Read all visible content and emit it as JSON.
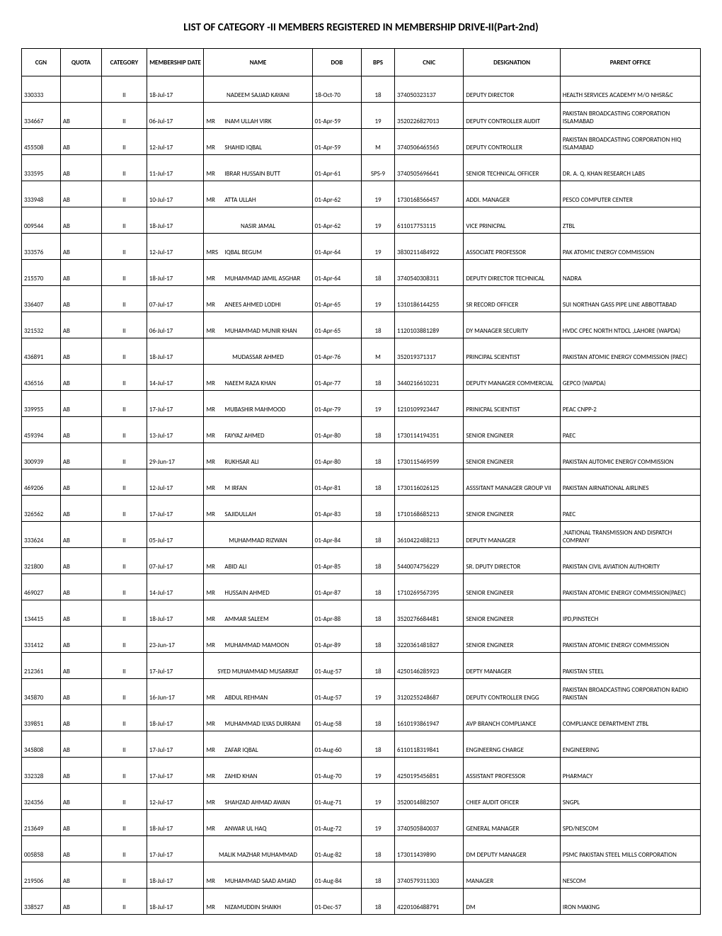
{
  "title": "LIST OF CATEGORY -II MEMBERS REGISTERED IN MEMBERSHIP DRIVE-II(Part-2nd)",
  "headers": {
    "cgn": "CGN",
    "quota": "QUOTA",
    "category": "CATEGORY",
    "date": "MEMBERSHIP DATE",
    "name": "NAME",
    "dob": "DOB",
    "bps": "BPS",
    "cnic": "CNIC",
    "designation": "DESIGNATION",
    "parent": "PARENT OFFICE"
  },
  "rows": [
    {
      "cgn": "330333",
      "quota": "",
      "category": "II",
      "date": "18-Jul-17",
      "honorific": "",
      "name": "NADEEM SAJJAD KAYANI",
      "dob": "18-Oct-70",
      "bps": "18",
      "cnic": "374050323137",
      "designation": "DEPUTY DIRECTOR",
      "parent": "HEALTH SERVICES ACADEMY M/O NHSR&C"
    },
    {
      "cgn": "334667",
      "quota": "AB",
      "category": "II",
      "date": "06-Jul-17",
      "honorific": "MR",
      "name": "INAM ULLAH VIRK",
      "dob": "01-Apr-59",
      "bps": "19",
      "cnic": "3520226827013",
      "designation": "DEPUTY CONTROLLER AUDIT",
      "parent": "PAKISTAN BROADCASTING CORPORATION ISLAMABAD"
    },
    {
      "cgn": "455508",
      "quota": "AB",
      "category": "II",
      "date": "12-Jul-17",
      "honorific": "MR",
      "name": "SHAHID IQBAL",
      "dob": "01-Apr-59",
      "bps": "M",
      "cnic": "3740506465565",
      "designation": "DEPUTY CONTROLLER",
      "parent": "PAKISTAN BROADCASTING CORPORATION HIQ ISLAMABAD"
    },
    {
      "cgn": "333595",
      "quota": "AB",
      "category": "II",
      "date": "11-Jul-17",
      "honorific": "MR",
      "name": "IBRAR HUSSAIN BUTT",
      "dob": "01-Apr-61",
      "bps": "SPS-9",
      "cnic": "3740505696641",
      "designation": "SENIOR TECHNICAL OFFICER",
      "parent": "DR. A. Q. KHAN RESEARCH LABS"
    },
    {
      "cgn": "333948",
      "quota": "AB",
      "category": "II",
      "date": "10-Jul-17",
      "honorific": "MR",
      "name": "ATTA ULLAH",
      "dob": "01-Apr-62",
      "bps": "19",
      "cnic": "1730168566457",
      "designation": "ADDI. MANAGER",
      "parent": "PESCO COMPUTER CENTER"
    },
    {
      "cgn": "009544",
      "quota": "AB",
      "category": "II",
      "date": "18-Jul-17",
      "honorific": "",
      "name": "NASIR JAMAL",
      "dob": "01-Apr-62",
      "bps": "19",
      "cnic": "611017753115",
      "designation": "VICE PRINICPAL",
      "parent": "ZTBL"
    },
    {
      "cgn": "333576",
      "quota": "AB",
      "category": "II",
      "date": "12-Jul-17",
      "honorific": "MRS",
      "name": "IQBAL BEGUM",
      "dob": "01-Apr-64",
      "bps": "19",
      "cnic": "3830211484922",
      "designation": "ASSOCIATE PROFESSOR",
      "parent": "PAK ATOMIC ENERGY COMMISSION"
    },
    {
      "cgn": "215570",
      "quota": "AB",
      "category": "II",
      "date": "18-Jul-17",
      "honorific": "MR",
      "name": "MUHAMMAD JAMIL ASGHAR",
      "dob": "01-Apr-64",
      "bps": "18",
      "cnic": "3740540308311",
      "designation": "DEPUTY DIRECTOR TECHNICAL",
      "parent": "NADRA"
    },
    {
      "cgn": "336407",
      "quota": "AB",
      "category": "II",
      "date": "07-Jul-17",
      "honorific": "MR",
      "name": "ANEES AHMED LODHI",
      "dob": "01-Apr-65",
      "bps": "19",
      "cnic": "1310186144255",
      "designation": "SR RECORD OFFICER",
      "parent": "SUI NORTHAN GASS PIPE LINE ABBOTTABAD"
    },
    {
      "cgn": "321532",
      "quota": "AB",
      "category": "II",
      "date": "06-Jul-17",
      "honorific": "MR",
      "name": "MUHAMMAD MUNIR KHAN",
      "dob": "01-Apr-65",
      "bps": "18",
      "cnic": "1120103881289",
      "designation": "DY MANAGER SECURITY",
      "parent": "HVDC CPEC NORTH NTDCL ,LAHORE (WAPDA)"
    },
    {
      "cgn": "436891",
      "quota": "AB",
      "category": "II",
      "date": "18-Jul-17",
      "honorific": "",
      "name": "MUDASSAR AHMED",
      "dob": "01-Apr-76",
      "bps": "M",
      "cnic": "352019371317",
      "designation": "PRINCIPAL SCIENTIST",
      "parent": "PAKISTAN ATOMIC ENERGY COMMISSION (PAEC)"
    },
    {
      "cgn": "436516",
      "quota": "AB",
      "category": "II",
      "date": "14-Jul-17",
      "honorific": "MR",
      "name": "NAEEM RAZA KHAN",
      "dob": "01-Apr-77",
      "bps": "18",
      "cnic": "3440216610231",
      "designation": "DEPUTY MANAGER COMMERCIAL",
      "parent": "GEPCO (WAPDA)"
    },
    {
      "cgn": "339955",
      "quota": "AB",
      "category": "II",
      "date": "17-Jul-17",
      "honorific": "MR",
      "name": "MUBASHIR MAHMOOD",
      "dob": "01-Apr-79",
      "bps": "19",
      "cnic": "1210109923447",
      "designation": "PRINICPAL SCIENTIST",
      "parent": "PEAC CNPP-2"
    },
    {
      "cgn": "459394",
      "quota": "AB",
      "category": "II",
      "date": "13-Jul-17",
      "honorific": "MR",
      "name": "FAYYAZ AHMED",
      "dob": "01-Apr-80",
      "bps": "18",
      "cnic": "1730114194351",
      "designation": "SENIOR ENGINEER",
      "parent": "PAEC"
    },
    {
      "cgn": "300939",
      "quota": "AB",
      "category": "II",
      "date": "29-Jun-17",
      "honorific": "MR",
      "name": "RUKHSAR ALI",
      "dob": "01-Apr-80",
      "bps": "18",
      "cnic": "1730115469599",
      "designation": "SENIOR ENGINEER",
      "parent": "PAKISTAN AUTOMIC ENERGY COMMISSION"
    },
    {
      "cgn": "469206",
      "quota": "AB",
      "category": "II",
      "date": "12-Jul-17",
      "honorific": "MR",
      "name": "M IRFAN",
      "dob": "01-Apr-81",
      "bps": "18",
      "cnic": "1730116026125",
      "designation": "ASSSITANT MANAGER GROUP VII",
      "parent": "PAKISTAN AIRNATIONAL AIRLINES"
    },
    {
      "cgn": "326562",
      "quota": "AB",
      "category": "II",
      "date": "17-Jul-17",
      "honorific": "MR",
      "name": "SAJIDULLAH",
      "dob": "01-Apr-83",
      "bps": "18",
      "cnic": "1710168685213",
      "designation": "SENIOR ENGINEER",
      "parent": "PAEC"
    },
    {
      "cgn": "333624",
      "quota": "AB",
      "category": "II",
      "date": "05-Jul-17",
      "honorific": "",
      "name": "MUHAMMAD RIZWAN",
      "dob": "01-Apr-84",
      "bps": "18",
      "cnic": "3610422488213",
      "designation": "DEPUTY MANAGER",
      "parent": ",NATIONAL TRANSMISSION AND DISPATCH COMPANY"
    },
    {
      "cgn": "321800",
      "quota": "AB",
      "category": "II",
      "date": "07-Jul-17",
      "honorific": "MR",
      "name": "ABID ALI",
      "dob": "01-Apr-85",
      "bps": "18",
      "cnic": "5440074756229",
      "designation": "SR. DPUTY DIRECTOR",
      "parent": "PAKISTAN CIVIL AVIATION AUTHORITY"
    },
    {
      "cgn": "469027",
      "quota": "AB",
      "category": "II",
      "date": "14-Jul-17",
      "honorific": "MR",
      "name": "HUSSAIN AHMED",
      "dob": "01-Apr-87",
      "bps": "18",
      "cnic": "1710269567395",
      "designation": "SENIOR ENGINEER",
      "parent": "PAKISTAN ATOMIC ENERGY COMMISSION(PAEC)"
    },
    {
      "cgn": "134415",
      "quota": "AB",
      "category": "II",
      "date": "18-Jul-17",
      "honorific": "MR",
      "name": "AMMAR SALEEM",
      "dob": "01-Apr-88",
      "bps": "18",
      "cnic": "3520276684481",
      "designation": "SENIOR ENGINEER",
      "parent": "IPD,PINSTECH"
    },
    {
      "cgn": "331412",
      "quota": "AB",
      "category": "II",
      "date": "23-Jun-17",
      "honorific": "MR",
      "name": "MUHAMMAD MAMOON",
      "dob": "01-Apr-89",
      "bps": "18",
      "cnic": "3220361481827",
      "designation": "SENIOR ENGINEER",
      "parent": "PAKISTAN ATOMIC ENERGY COMMISSION"
    },
    {
      "cgn": "212361",
      "quota": "AB",
      "category": "II",
      "date": "17-Jul-17",
      "honorific": "",
      "name": "SYED MUHAMMAD MUSARRAT",
      "dob": "01-Aug-57",
      "bps": "18",
      "cnic": "4250146285923",
      "designation": "DEPTY MANAGER",
      "parent": "PAKISTAN STEEL"
    },
    {
      "cgn": "345870",
      "quota": "AB",
      "category": "II",
      "date": "16-Jun-17",
      "honorific": "MR",
      "name": "ABDUL REHMAN",
      "dob": "01-Aug-57",
      "bps": "19",
      "cnic": "3120255248687",
      "designation": "DEPUTY CONTROLLER ENGG",
      "parent": "PAKISTAN BROADCASTING CORPORATION RADIO PAKISTAN"
    },
    {
      "cgn": "339851",
      "quota": "AB",
      "category": "II",
      "date": "18-Jul-17",
      "honorific": "MR",
      "name": "MUHAMMAD ILYAS DURRANI",
      "dob": "01-Aug-58",
      "bps": "18",
      "cnic": "1610193861947",
      "designation": "AVP BRANCH COMPLIANCE",
      "parent": "COMPLIANCE DEPARTMENT ZTBL"
    },
    {
      "cgn": "345808",
      "quota": "AB",
      "category": "II",
      "date": "17-Jul-17",
      "honorific": "MR",
      "name": "ZAFAR IQBAL",
      "dob": "01-Aug-60",
      "bps": "18",
      "cnic": "6110118319841",
      "designation": "ENGINEERNG CHARGE",
      "parent": "ENGINEERING"
    },
    {
      "cgn": "332328",
      "quota": "AB",
      "category": "II",
      "date": "17-Jul-17",
      "honorific": "MR",
      "name": "ZAHID KHAN",
      "dob": "01-Aug-70",
      "bps": "19",
      "cnic": "4250195456851",
      "designation": "ASSISTANT PROFESSOR",
      "parent": "PHARMACY"
    },
    {
      "cgn": "324356",
      "quota": "AB",
      "category": "II",
      "date": "12-Jul-17",
      "honorific": "MR",
      "name": "SHAHZAD AHMAD AWAN",
      "dob": "01-Aug-71",
      "bps": "19",
      "cnic": "3520014882507",
      "designation": "CHIEF AUDIT OFICER",
      "parent": "SNGPL"
    },
    {
      "cgn": "213649",
      "quota": "AB",
      "category": "II",
      "date": "18-Jul-17",
      "honorific": "MR",
      "name": "ANWAR UL HAQ",
      "dob": "01-Aug-72",
      "bps": "19",
      "cnic": "3740505840037",
      "designation": "GENERAL MANAGER",
      "parent": "SPD/NESCOM"
    },
    {
      "cgn": "005858",
      "quota": "AB",
      "category": "II",
      "date": "17-Jul-17",
      "honorific": "",
      "name": "MALIK MAZHAR MUHAMMAD",
      "dob": "01-Aug-82",
      "bps": "18",
      "cnic": "173011439890",
      "designation": "DM DEPUTY MANAGER",
      "parent": "PSMC PAKISTAN STEEL MILLS CORPORATION"
    },
    {
      "cgn": "219506",
      "quota": "AB",
      "category": "II",
      "date": "18-Jul-17",
      "honorific": "MR",
      "name": "MUHAMMAD SAAD AMJAD",
      "dob": "01-Aug-84",
      "bps": "18",
      "cnic": "3740579311303",
      "designation": "MANAGER",
      "parent": "NESCOM"
    },
    {
      "cgn": "338527",
      "quota": "AB",
      "category": "II",
      "date": "18-Jul-17",
      "honorific": "MR",
      "name": "NIZAMUDDIN SHAIKH",
      "dob": "01-Dec-57",
      "bps": "18",
      "cnic": "4220106488791",
      "designation": "DM",
      "parent": "IRON MAKING"
    }
  ]
}
